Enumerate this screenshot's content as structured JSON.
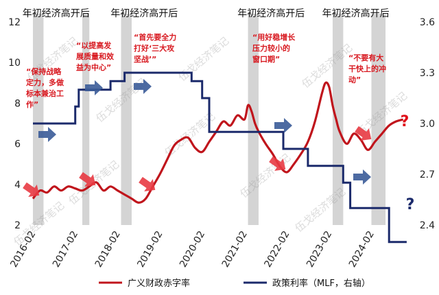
{
  "colors": {
    "deficit": "#c0151c",
    "policy": "#1b2a6b",
    "band": "#d4d4d4",
    "red_arrow": "#e83a42",
    "blue_arrow": "#3a5b98",
    "annotation": "#d81920",
    "question_red": "#e0101a",
    "question_blue": "#1b2a6b"
  },
  "watermark": "伍戈经济笔记",
  "chart_data": {
    "type": "line",
    "title": "",
    "left_axis": {
      "ylim": [
        2,
        12
      ],
      "ticks": [
        "2",
        "4",
        "6",
        "8",
        "10",
        "12"
      ]
    },
    "right_axis": {
      "ylim": [
        2.4,
        3.6
      ],
      "ticks": [
        "2.4",
        "2.7",
        "3.0",
        "3.3",
        "3.6"
      ]
    },
    "x_axis": {
      "range": [
        "2016-02",
        "2024-12"
      ],
      "ticks": [
        "2016-02",
        "2017-02",
        "2018-02",
        "2019-02",
        "2020-02",
        "2021-02",
        "2022-02",
        "2023-02",
        "2024-02"
      ]
    },
    "period_bands": [
      {
        "start": "2016-02",
        "end": "2016-05",
        "label": "年初经济高开后"
      },
      {
        "start": "2017-04",
        "end": "2017-06",
        "label": ""
      },
      {
        "start": "2018-03",
        "end": "2018-06",
        "label": "年初经济高开后"
      },
      {
        "start": "2021-03",
        "end": "2021-06",
        "label": "年初经济高开后"
      },
      {
        "start": "2023-03",
        "end": "2023-06",
        "label": "年初经济高开后"
      },
      {
        "start": "2024-02",
        "end": "2024-06",
        "label": ""
      }
    ],
    "series": [
      {
        "name": "广义财政赤字率",
        "axis": "left",
        "points": [
          [
            "2016-02",
            3.3
          ],
          [
            "2016-04",
            3.7
          ],
          [
            "2016-06",
            3.6
          ],
          [
            "2016-08",
            3.9
          ],
          [
            "2016-10",
            3.7
          ],
          [
            "2016-12",
            3.9
          ],
          [
            "2017-02",
            3.8
          ],
          [
            "2017-04",
            3.7
          ],
          [
            "2017-06",
            3.9
          ],
          [
            "2017-08",
            4.1
          ],
          [
            "2017-10",
            3.7
          ],
          [
            "2017-12",
            3.9
          ],
          [
            "2018-02",
            3.7
          ],
          [
            "2018-04",
            3.5
          ],
          [
            "2018-06",
            3.3
          ],
          [
            "2018-08",
            3.1
          ],
          [
            "2018-10",
            3.3
          ],
          [
            "2018-12",
            3.9
          ],
          [
            "2019-02",
            4.5
          ],
          [
            "2019-04",
            5.2
          ],
          [
            "2019-06",
            5.9
          ],
          [
            "2019-08",
            6.2
          ],
          [
            "2019-10",
            6.3
          ],
          [
            "2019-12",
            5.8
          ],
          [
            "2020-02",
            5.6
          ],
          [
            "2020-04",
            6.1
          ],
          [
            "2020-06",
            6.6
          ],
          [
            "2020-08",
            7.1
          ],
          [
            "2020-10",
            6.9
          ],
          [
            "2020-12",
            7.4
          ],
          [
            "2021-02",
            7.2
          ],
          [
            "2021-03",
            7.9
          ],
          [
            "2021-04",
            7.6
          ],
          [
            "2021-05",
            7.0
          ],
          [
            "2021-06",
            6.6
          ],
          [
            "2021-08",
            6.0
          ],
          [
            "2021-10",
            5.5
          ],
          [
            "2021-12",
            4.9
          ],
          [
            "2022-02",
            4.6
          ],
          [
            "2022-04",
            5.0
          ],
          [
            "2022-06",
            5.5
          ],
          [
            "2022-08",
            6.1
          ],
          [
            "2022-10",
            7.1
          ],
          [
            "2022-12",
            8.5
          ],
          [
            "2023-01",
            9.0
          ],
          [
            "2023-02",
            8.8
          ],
          [
            "2023-03",
            7.9
          ],
          [
            "2023-04",
            7.2
          ],
          [
            "2023-05",
            6.6
          ],
          [
            "2023-07",
            6.0
          ],
          [
            "2023-09",
            6.5
          ],
          [
            "2023-11",
            6.2
          ],
          [
            "2024-01",
            5.7
          ],
          [
            "2024-03",
            6.1
          ],
          [
            "2024-05",
            6.5
          ],
          [
            "2024-07",
            6.9
          ],
          [
            "2024-09",
            7.1
          ],
          [
            "2024-11",
            7.2
          ]
        ]
      },
      {
        "name": "政策利率（MLF，右轴）",
        "axis": "right",
        "points": [
          [
            "2016-02",
            3.0
          ],
          [
            "2017-01",
            3.0
          ],
          [
            "2017-02",
            3.1
          ],
          [
            "2017-03",
            3.2
          ],
          [
            "2017-12",
            3.25
          ],
          [
            "2018-04",
            3.3
          ],
          [
            "2019-10",
            3.3
          ],
          [
            "2019-11",
            3.25
          ],
          [
            "2020-02",
            3.15
          ],
          [
            "2020-04",
            2.95
          ],
          [
            "2022-01",
            2.85
          ],
          [
            "2022-08",
            2.75
          ],
          [
            "2023-06",
            2.65
          ],
          [
            "2023-08",
            2.5
          ],
          [
            "2024-07",
            2.3
          ],
          [
            "2024-12",
            2.3
          ]
        ]
      }
    ],
    "annotations": [
      {
        "lines": [
          "“保持战略",
          "定力，多做",
          "标本兼治工",
          "作”"
        ]
      },
      {
        "lines": [
          "“以提高发",
          "展质量和效",
          "益为中心”"
        ]
      },
      {
        "lines": [
          "“首先要全力",
          "打好‘三大攻",
          "坚战’”"
        ]
      },
      {
        "lines": [
          "“用好稳增长",
          "压力较小的",
          "窗口期”"
        ]
      },
      {
        "lines": [
          "“不要有大",
          "干快上的冲",
          "动”"
        ]
      }
    ],
    "question_marks": [
      "?",
      "?"
    ],
    "legend": [
      {
        "label": "广义财政赤字率",
        "series": 0
      },
      {
        "label": "政策利率（MLF，右轴）",
        "series": 1
      }
    ]
  }
}
